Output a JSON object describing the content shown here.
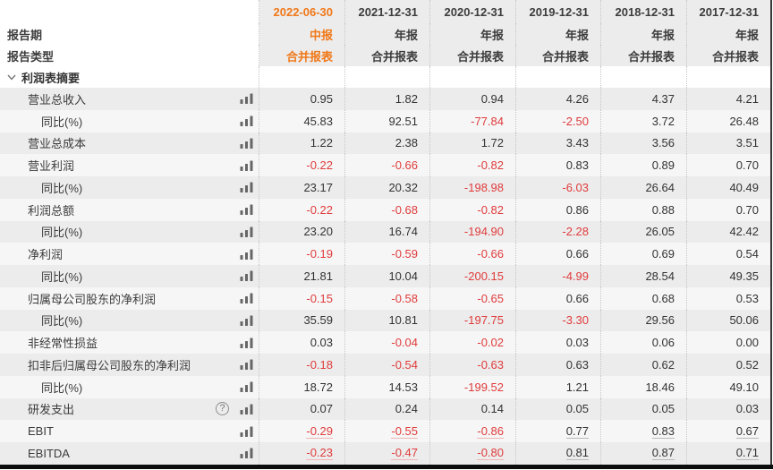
{
  "colors": {
    "accent_orange": "#f07818",
    "negative_red": "#e03b3c",
    "text_dark": "#3b3b3b",
    "row_odd_bg": "#ececec",
    "row_even_bg": "#f6f6f6",
    "header_bg": "#ececec",
    "separator_dotted": "#c6c6c6"
  },
  "header": {
    "period_label": "报告期",
    "type_label": "报告类型",
    "columns": [
      {
        "date": "2022-06-30",
        "period": "中报",
        "report_type": "合并报表",
        "current": true
      },
      {
        "date": "2021-12-31",
        "period": "年报",
        "report_type": "合并报表",
        "current": false
      },
      {
        "date": "2020-12-31",
        "period": "年报",
        "report_type": "合并报表",
        "current": false
      },
      {
        "date": "2019-12-31",
        "period": "年报",
        "report_type": "合并报表",
        "current": false
      },
      {
        "date": "2018-12-31",
        "period": "年报",
        "report_type": "合并报表",
        "current": false
      },
      {
        "date": "2017-12-31",
        "period": "年报",
        "report_type": "合并报表",
        "current": false
      }
    ]
  },
  "section": {
    "title": "利润表摘要",
    "expanded": true
  },
  "icons": {
    "chart": "bar-chart-icon",
    "help": "help-icon",
    "chevron": "chevron-down-icon",
    "help_glyph": "?"
  },
  "table_rows": [
    {
      "label": "营业总收入",
      "indent": 1,
      "help": false,
      "underline": false,
      "values": [
        "0.95",
        "1.82",
        "0.94",
        "4.26",
        "4.37",
        "4.21"
      ]
    },
    {
      "label": "同比(%)",
      "indent": 2,
      "help": false,
      "underline": false,
      "values": [
        "45.83",
        "92.51",
        "-77.84",
        "-2.50",
        "3.72",
        "26.48"
      ]
    },
    {
      "label": "营业总成本",
      "indent": 1,
      "help": false,
      "underline": false,
      "values": [
        "1.22",
        "2.38",
        "1.72",
        "3.43",
        "3.56",
        "3.51"
      ]
    },
    {
      "label": "营业利润",
      "indent": 1,
      "help": false,
      "underline": false,
      "values": [
        "-0.22",
        "-0.66",
        "-0.82",
        "0.83",
        "0.89",
        "0.70"
      ]
    },
    {
      "label": "同比(%)",
      "indent": 2,
      "help": false,
      "underline": false,
      "values": [
        "23.17",
        "20.32",
        "-198.98",
        "-6.03",
        "26.64",
        "40.49"
      ]
    },
    {
      "label": "利润总额",
      "indent": 1,
      "help": false,
      "underline": false,
      "values": [
        "-0.22",
        "-0.68",
        "-0.82",
        "0.86",
        "0.88",
        "0.70"
      ]
    },
    {
      "label": "同比(%)",
      "indent": 2,
      "help": false,
      "underline": false,
      "values": [
        "23.20",
        "16.74",
        "-194.90",
        "-2.28",
        "26.05",
        "42.42"
      ]
    },
    {
      "label": "净利润",
      "indent": 1,
      "help": false,
      "underline": false,
      "values": [
        "-0.19",
        "-0.59",
        "-0.66",
        "0.66",
        "0.69",
        "0.54"
      ]
    },
    {
      "label": "同比(%)",
      "indent": 2,
      "help": false,
      "underline": false,
      "values": [
        "21.81",
        "10.04",
        "-200.15",
        "-4.99",
        "28.54",
        "49.35"
      ]
    },
    {
      "label": "归属母公司股东的净利润",
      "indent": 1,
      "help": false,
      "underline": false,
      "values": [
        "-0.15",
        "-0.58",
        "-0.65",
        "0.66",
        "0.68",
        "0.53"
      ]
    },
    {
      "label": "同比(%)",
      "indent": 2,
      "help": false,
      "underline": false,
      "values": [
        "35.59",
        "10.81",
        "-197.75",
        "-3.30",
        "29.56",
        "50.06"
      ]
    },
    {
      "label": "非经常性损益",
      "indent": 1,
      "help": false,
      "underline": false,
      "values": [
        "0.03",
        "-0.04",
        "-0.02",
        "0.03",
        "0.06",
        "0.00"
      ]
    },
    {
      "label": "扣非后归属母公司股东的净利润",
      "indent": 1,
      "help": false,
      "underline": false,
      "values": [
        "-0.18",
        "-0.54",
        "-0.63",
        "0.63",
        "0.62",
        "0.52"
      ]
    },
    {
      "label": "同比(%)",
      "indent": 2,
      "help": false,
      "underline": false,
      "values": [
        "18.72",
        "14.53",
        "-199.52",
        "1.21",
        "18.46",
        "49.10"
      ]
    },
    {
      "label": "研发支出",
      "indent": 1,
      "help": true,
      "underline": false,
      "values": [
        "0.07",
        "0.24",
        "0.14",
        "0.05",
        "0.05",
        "0.03"
      ]
    },
    {
      "label": "EBIT",
      "indent": 1,
      "help": false,
      "underline": true,
      "values": [
        "-0.29",
        "-0.55",
        "-0.86",
        "0.77",
        "0.83",
        "0.67"
      ]
    },
    {
      "label": "EBITDA",
      "indent": 1,
      "help": false,
      "underline": true,
      "values": [
        "-0.23",
        "-0.47",
        "-0.80",
        "0.81",
        "0.87",
        "0.71"
      ]
    }
  ]
}
